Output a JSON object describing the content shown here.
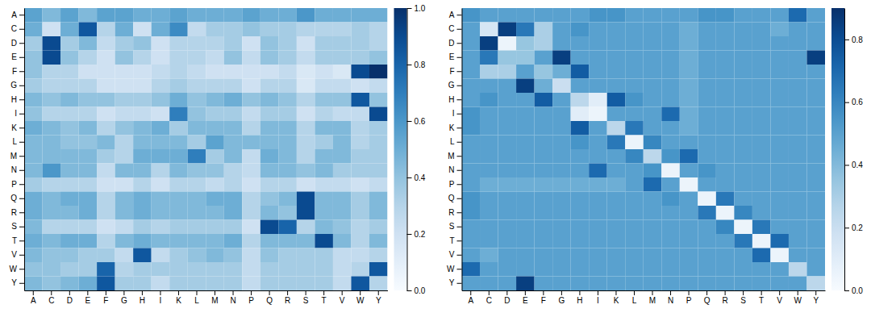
{
  "chart_data": [
    {
      "type": "heatmap",
      "color": "Blues",
      "x": [
        "A",
        "C",
        "D",
        "E",
        "F",
        "G",
        "H",
        "I",
        "K",
        "L",
        "M",
        "N",
        "P",
        "Q",
        "R",
        "S",
        "T",
        "V",
        "W",
        "Y"
      ],
      "y": [
        "A",
        "C",
        "D",
        "E",
        "F",
        "G",
        "H",
        "I",
        "K",
        "L",
        "M",
        "N",
        "P",
        "Q",
        "R",
        "S",
        "T",
        "V",
        "W",
        "Y"
      ],
      "values": [
        [
          0.55,
          0.45,
          0.55,
          0.45,
          0.55,
          0.55,
          0.5,
          0.5,
          0.55,
          0.5,
          0.5,
          0.5,
          0.55,
          0.5,
          0.5,
          0.6,
          0.5,
          0.5,
          0.5,
          0.5
        ],
        [
          0.5,
          0.2,
          0.5,
          0.85,
          0.3,
          0.5,
          0.2,
          0.5,
          0.65,
          0.25,
          0.35,
          0.35,
          0.4,
          0.35,
          0.35,
          0.3,
          0.3,
          0.3,
          0.35,
          0.3
        ],
        [
          0.35,
          0.9,
          0.35,
          0.45,
          0.25,
          0.35,
          0.4,
          0.2,
          0.3,
          0.3,
          0.3,
          0.35,
          0.2,
          0.4,
          0.35,
          0.2,
          0.35,
          0.35,
          0.35,
          0.3
        ],
        [
          0.4,
          0.9,
          0.4,
          0.3,
          0.2,
          0.4,
          0.3,
          0.2,
          0.3,
          0.3,
          0.25,
          0.4,
          0.25,
          0.4,
          0.35,
          0.25,
          0.35,
          0.35,
          0.35,
          0.4
        ],
        [
          0.4,
          0.3,
          0.3,
          0.2,
          0.2,
          0.2,
          0.2,
          0.25,
          0.3,
          0.25,
          0.2,
          0.2,
          0.2,
          0.2,
          0.25,
          0.15,
          0.2,
          0.15,
          0.9,
          1.0
        ],
        [
          0.35,
          0.3,
          0.3,
          0.3,
          0.2,
          0.2,
          0.2,
          0.3,
          0.35,
          0.3,
          0.3,
          0.3,
          0.2,
          0.3,
          0.3,
          0.15,
          0.25,
          0.25,
          0.2,
          0.25
        ],
        [
          0.45,
          0.4,
          0.45,
          0.4,
          0.4,
          0.35,
          0.35,
          0.4,
          0.5,
          0.4,
          0.45,
          0.5,
          0.4,
          0.45,
          0.4,
          0.3,
          0.4,
          0.4,
          0.85,
          0.4
        ],
        [
          0.4,
          0.3,
          0.3,
          0.3,
          0.2,
          0.25,
          0.25,
          0.2,
          0.7,
          0.4,
          0.35,
          0.35,
          0.25,
          0.35,
          0.35,
          0.2,
          0.3,
          0.25,
          0.25,
          0.9
        ],
        [
          0.5,
          0.45,
          0.4,
          0.45,
          0.3,
          0.4,
          0.45,
          0.5,
          0.35,
          0.45,
          0.45,
          0.45,
          0.3,
          0.45,
          0.45,
          0.3,
          0.45,
          0.45,
          0.3,
          0.35
        ],
        [
          0.45,
          0.45,
          0.4,
          0.4,
          0.45,
          0.3,
          0.45,
          0.45,
          0.45,
          0.35,
          0.55,
          0.45,
          0.45,
          0.45,
          0.45,
          0.3,
          0.35,
          0.45,
          0.3,
          0.35
        ],
        [
          0.45,
          0.45,
          0.45,
          0.45,
          0.35,
          0.3,
          0.5,
          0.5,
          0.5,
          0.7,
          0.35,
          0.45,
          0.25,
          0.5,
          0.45,
          0.3,
          0.45,
          0.45,
          0.35,
          0.35
        ],
        [
          0.45,
          0.6,
          0.45,
          0.45,
          0.25,
          0.45,
          0.45,
          0.3,
          0.45,
          0.4,
          0.4,
          0.3,
          0.25,
          0.45,
          0.45,
          0.4,
          0.45,
          0.35,
          0.35,
          0.35
        ],
        [
          0.35,
          0.3,
          0.3,
          0.3,
          0.2,
          0.2,
          0.3,
          0.2,
          0.3,
          0.3,
          0.25,
          0.3,
          0.2,
          0.3,
          0.3,
          0.2,
          0.25,
          0.25,
          0.2,
          0.25
        ],
        [
          0.5,
          0.45,
          0.5,
          0.5,
          0.3,
          0.45,
          0.5,
          0.45,
          0.45,
          0.45,
          0.5,
          0.5,
          0.3,
          0.4,
          0.45,
          0.9,
          0.45,
          0.45,
          0.35,
          0.45
        ],
        [
          0.5,
          0.45,
          0.45,
          0.5,
          0.3,
          0.45,
          0.5,
          0.45,
          0.45,
          0.45,
          0.45,
          0.5,
          0.3,
          0.45,
          0.4,
          0.9,
          0.45,
          0.45,
          0.35,
          0.45
        ],
        [
          0.45,
          0.3,
          0.3,
          0.3,
          0.2,
          0.25,
          0.35,
          0.3,
          0.35,
          0.35,
          0.35,
          0.35,
          0.2,
          0.9,
          0.8,
          0.3,
          0.45,
          0.4,
          0.3,
          0.35
        ],
        [
          0.5,
          0.45,
          0.5,
          0.5,
          0.3,
          0.45,
          0.5,
          0.45,
          0.45,
          0.45,
          0.45,
          0.5,
          0.3,
          0.45,
          0.45,
          0.45,
          0.9,
          0.45,
          0.3,
          0.45
        ],
        [
          0.45,
          0.4,
          0.4,
          0.35,
          0.35,
          0.25,
          0.85,
          0.25,
          0.35,
          0.4,
          0.45,
          0.4,
          0.25,
          0.4,
          0.35,
          0.35,
          0.35,
          0.25,
          0.25,
          0.3
        ],
        [
          0.4,
          0.4,
          0.35,
          0.35,
          0.8,
          0.3,
          0.35,
          0.35,
          0.35,
          0.35,
          0.35,
          0.35,
          0.25,
          0.35,
          0.35,
          0.35,
          0.35,
          0.25,
          0.3,
          0.85
        ],
        [
          0.45,
          0.4,
          0.45,
          0.5,
          0.85,
          0.35,
          0.35,
          0.25,
          0.35,
          0.35,
          0.35,
          0.35,
          0.25,
          0.35,
          0.35,
          0.35,
          0.35,
          0.25,
          0.85,
          0.3
        ]
      ],
      "colorbar_range": [
        0.0,
        1.0
      ],
      "colorbar_ticks": [
        {
          "value": 0.0,
          "label": "0.0"
        },
        0.2,
        0.4,
        0.6,
        0.8,
        {
          "value": 1.0,
          "label": "1.0"
        }
      ]
    },
    {
      "type": "heatmap",
      "color": "Blues",
      "x": [
        "A",
        "C",
        "D",
        "E",
        "F",
        "G",
        "H",
        "I",
        "K",
        "L",
        "M",
        "N",
        "P",
        "Q",
        "R",
        "S",
        "T",
        "V",
        "W",
        "Y"
      ],
      "y": [
        "A",
        "C",
        "D",
        "E",
        "F",
        "G",
        "H",
        "I",
        "K",
        "L",
        "M",
        "N",
        "P",
        "Q",
        "R",
        "S",
        "T",
        "V",
        "W",
        "Y"
      ],
      "values": [
        [
          0.55,
          0.5,
          0.5,
          0.5,
          0.5,
          0.5,
          0.5,
          0.55,
          0.55,
          0.5,
          0.5,
          0.5,
          0.5,
          0.55,
          0.55,
          0.5,
          0.5,
          0.5,
          0.7,
          0.5
        ],
        [
          0.5,
          0.15,
          0.85,
          0.65,
          0.3,
          0.5,
          0.55,
          0.5,
          0.5,
          0.5,
          0.5,
          0.5,
          0.45,
          0.5,
          0.5,
          0.5,
          0.5,
          0.45,
          0.5,
          0.5
        ],
        [
          0.5,
          0.85,
          0.05,
          0.35,
          0.3,
          0.5,
          0.5,
          0.5,
          0.5,
          0.5,
          0.5,
          0.5,
          0.45,
          0.5,
          0.5,
          0.5,
          0.5,
          0.5,
          0.5,
          0.5
        ],
        [
          0.5,
          0.65,
          0.35,
          0.35,
          0.5,
          0.85,
          0.5,
          0.5,
          0.5,
          0.5,
          0.5,
          0.5,
          0.45,
          0.5,
          0.5,
          0.5,
          0.5,
          0.5,
          0.5,
          0.85
        ],
        [
          0.5,
          0.3,
          0.3,
          0.5,
          0.35,
          0.45,
          0.75,
          0.5,
          0.5,
          0.5,
          0.5,
          0.5,
          0.45,
          0.5,
          0.5,
          0.5,
          0.5,
          0.5,
          0.5,
          0.5
        ],
        [
          0.5,
          0.5,
          0.5,
          0.85,
          0.45,
          0.2,
          0.5,
          0.5,
          0.5,
          0.5,
          0.5,
          0.5,
          0.45,
          0.5,
          0.5,
          0.5,
          0.5,
          0.5,
          0.5,
          0.5
        ],
        [
          0.5,
          0.55,
          0.5,
          0.5,
          0.75,
          0.5,
          0.25,
          0.1,
          0.75,
          0.55,
          0.5,
          0.5,
          0.45,
          0.5,
          0.5,
          0.5,
          0.5,
          0.5,
          0.5,
          0.5
        ],
        [
          0.55,
          0.5,
          0.5,
          0.5,
          0.5,
          0.5,
          0.1,
          0.05,
          0.5,
          0.5,
          0.5,
          0.7,
          0.45,
          0.5,
          0.5,
          0.5,
          0.5,
          0.5,
          0.5,
          0.5
        ],
        [
          0.55,
          0.5,
          0.5,
          0.5,
          0.5,
          0.5,
          0.75,
          0.5,
          0.25,
          0.65,
          0.5,
          0.5,
          0.45,
          0.5,
          0.5,
          0.5,
          0.5,
          0.5,
          0.5,
          0.5
        ],
        [
          0.5,
          0.5,
          0.5,
          0.5,
          0.5,
          0.5,
          0.55,
          0.5,
          0.65,
          0.05,
          0.6,
          0.5,
          0.5,
          0.5,
          0.5,
          0.5,
          0.5,
          0.5,
          0.5,
          0.5
        ],
        [
          0.5,
          0.5,
          0.5,
          0.5,
          0.5,
          0.5,
          0.5,
          0.5,
          0.5,
          0.6,
          0.25,
          0.55,
          0.7,
          0.5,
          0.5,
          0.5,
          0.5,
          0.5,
          0.5,
          0.5
        ],
        [
          0.5,
          0.5,
          0.5,
          0.5,
          0.5,
          0.5,
          0.5,
          0.7,
          0.5,
          0.5,
          0.55,
          0.05,
          0.5,
          0.55,
          0.5,
          0.5,
          0.5,
          0.5,
          0.5,
          0.5
        ],
        [
          0.5,
          0.45,
          0.45,
          0.45,
          0.45,
          0.45,
          0.45,
          0.45,
          0.45,
          0.5,
          0.7,
          0.5,
          0.05,
          0.5,
          0.5,
          0.5,
          0.5,
          0.5,
          0.5,
          0.5
        ],
        [
          0.55,
          0.5,
          0.5,
          0.5,
          0.5,
          0.5,
          0.5,
          0.5,
          0.5,
          0.5,
          0.5,
          0.55,
          0.5,
          0.05,
          0.65,
          0.5,
          0.5,
          0.5,
          0.5,
          0.5
        ],
        [
          0.55,
          0.5,
          0.5,
          0.5,
          0.5,
          0.5,
          0.5,
          0.5,
          0.5,
          0.5,
          0.5,
          0.5,
          0.5,
          0.65,
          0.05,
          0.6,
          0.5,
          0.5,
          0.5,
          0.5
        ],
        [
          0.5,
          0.5,
          0.5,
          0.5,
          0.5,
          0.5,
          0.5,
          0.5,
          0.5,
          0.5,
          0.5,
          0.5,
          0.5,
          0.5,
          0.6,
          0.05,
          0.65,
          0.5,
          0.5,
          0.5
        ],
        [
          0.5,
          0.5,
          0.5,
          0.5,
          0.5,
          0.5,
          0.5,
          0.5,
          0.5,
          0.5,
          0.5,
          0.5,
          0.5,
          0.5,
          0.5,
          0.65,
          0.05,
          0.7,
          0.5,
          0.5
        ],
        [
          0.5,
          0.45,
          0.5,
          0.5,
          0.5,
          0.5,
          0.5,
          0.5,
          0.5,
          0.5,
          0.5,
          0.5,
          0.5,
          0.5,
          0.5,
          0.5,
          0.7,
          0.05,
          0.5,
          0.5
        ],
        [
          0.7,
          0.5,
          0.5,
          0.5,
          0.5,
          0.5,
          0.5,
          0.5,
          0.5,
          0.5,
          0.5,
          0.5,
          0.5,
          0.5,
          0.5,
          0.5,
          0.5,
          0.5,
          0.25,
          0.5
        ],
        [
          0.5,
          0.5,
          0.5,
          0.85,
          0.5,
          0.5,
          0.5,
          0.5,
          0.5,
          0.5,
          0.5,
          0.5,
          0.5,
          0.5,
          0.5,
          0.5,
          0.5,
          0.5,
          0.5,
          0.25
        ]
      ],
      "colorbar_range": [
        0.0,
        0.9
      ],
      "colorbar_ticks": [
        {
          "value": 0.0,
          "label": "0.0"
        },
        0.2,
        0.4,
        0.6,
        0.8
      ]
    }
  ]
}
